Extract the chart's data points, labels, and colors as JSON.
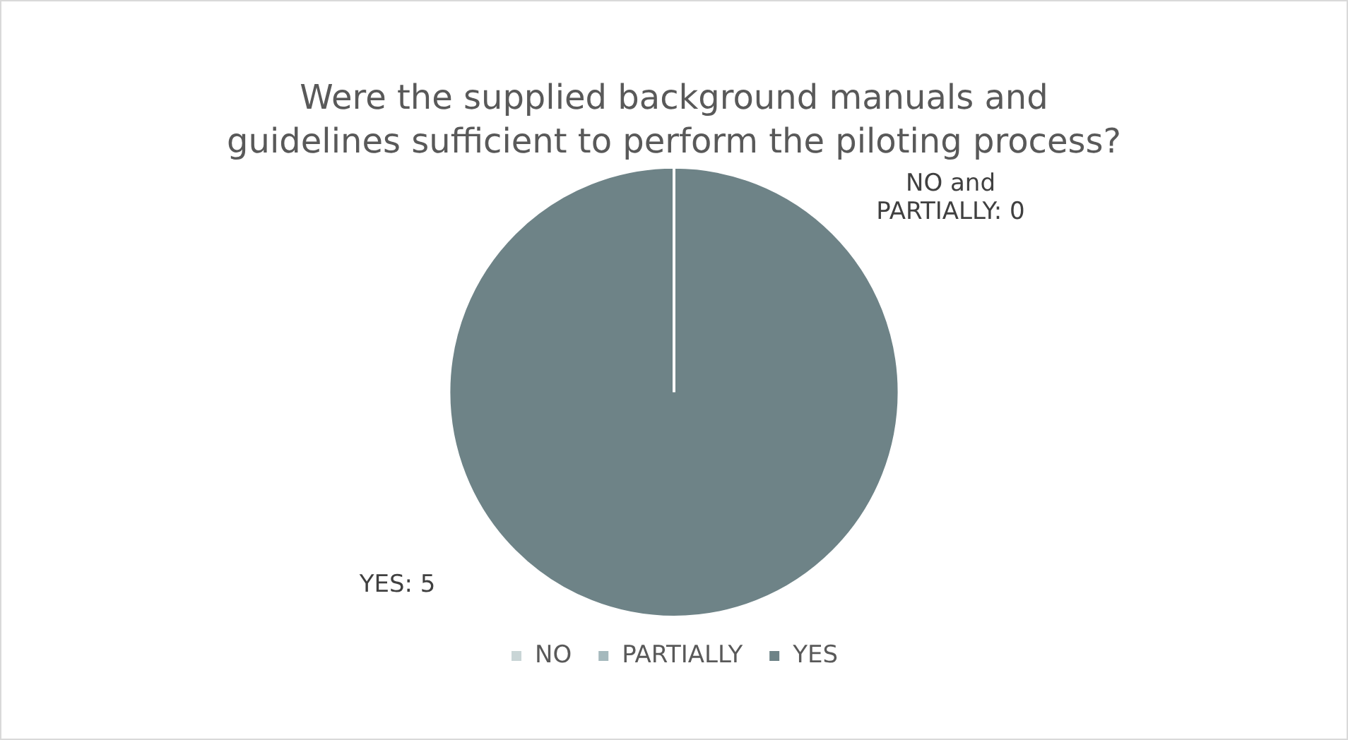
{
  "chart_data": {
    "type": "pie",
    "title": "Were the supplied background manuals and guidelines sufficient to perform the piloting process?",
    "categories": [
      "NO",
      "PARTIALLY",
      "YES"
    ],
    "values": [
      0,
      0,
      5
    ],
    "colors": [
      "#c9d5d6",
      "#a5b9bd",
      "#6e8387"
    ],
    "value_labels": [
      "NO and PARTIALLY: 0",
      null,
      "YES: 5"
    ],
    "legend": "bottom"
  }
}
